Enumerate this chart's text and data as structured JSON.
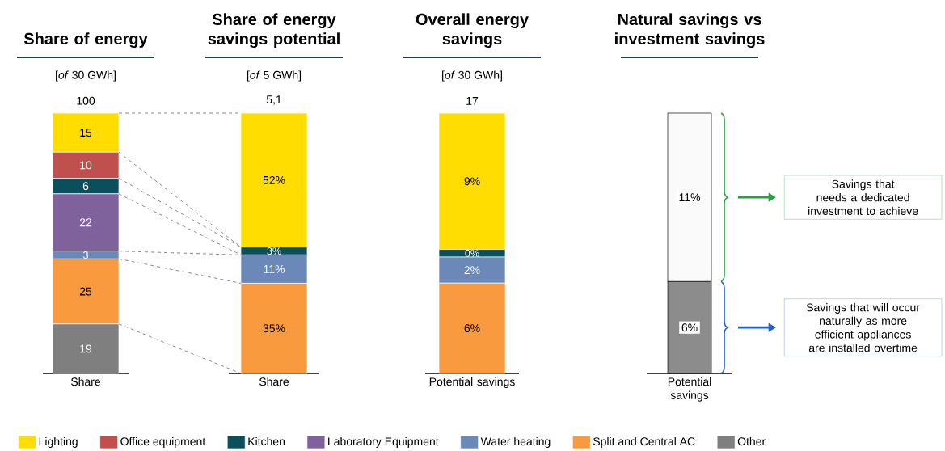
{
  "chart_data": [
    {
      "type": "bar",
      "stacked": true,
      "title": "Share of energy",
      "subtitle": "[*of* 30 GWh]",
      "categories": [
        "Share"
      ],
      "data_labels": true,
      "totals": [
        "100"
      ],
      "legend": "bottom",
      "series": [
        {
          "name": "Other",
          "color": "#7f7f7f",
          "values": [
            19
          ]
        },
        {
          "name": "Split and Central AC",
          "color": "#f99a3e",
          "values": [
            25
          ]
        },
        {
          "name": "Water heating",
          "color": "#6a89b8",
          "values": [
            3
          ]
        },
        {
          "name": "Laboratory Equipment",
          "color": "#7f629c",
          "values": [
            22
          ]
        },
        {
          "name": "Kitchen",
          "color": "#0c4f5c",
          "values": [
            6
          ]
        },
        {
          "name": "Office equipment",
          "color": "#c0504d",
          "values": [
            10
          ]
        },
        {
          "name": "Lighting",
          "color": "#ffdd00",
          "values": [
            15
          ]
        }
      ]
    },
    {
      "type": "bar",
      "stacked": true,
      "title": "Share of energy savings potential",
      "subtitle": "[*of* 5 GWh]",
      "categories": [
        "Share"
      ],
      "annotations": [
        {
          "text": "5,1",
          "x": "Share",
          "y": 101
        }
      ],
      "series": [
        {
          "color": "#f99a3e",
          "values": [
            35
          ],
          "value_labels": [
            "35%"
          ]
        },
        {
          "color": "#6a89b8",
          "values": [
            11
          ],
          "value_labels": [
            "11%"
          ]
        },
        {
          "color": "#0c4f5c",
          "values": [
            3
          ],
          "value_labels": [
            "3%"
          ]
        },
        {
          "color": "#ffdd00",
          "values": [
            52
          ],
          "value_labels": [
            "52%"
          ]
        }
      ]
    },
    {
      "type": "bar",
      "stacked": true,
      "title": "Overall energy savings",
      "subtitle": "[*of* 30 GWh]",
      "categories": [
        "Potential savings"
      ],
      "totals": [
        "17"
      ],
      "series": [
        {
          "color": "#f99a3e",
          "values": [
            5.9
          ],
          "value_labels": [
            "6%"
          ]
        },
        {
          "color": "#6a89b8",
          "values": [
            1.7
          ],
          "value_labels": [
            "2%"
          ]
        },
        {
          "color": "#0c4f5c",
          "values": [
            0.5
          ],
          "value_labels": [
            "0%"
          ]
        },
        {
          "color": "#ffdd00",
          "values": [
            8.9
          ],
          "value_labels": [
            "9%"
          ]
        }
      ]
    },
    {
      "type": "bar",
      "stacked": true,
      "title": "Natural savings vs investment savings",
      "categories": [
        "Potential savings"
      ],
      "series": [
        {
          "color": "#8c8c8c",
          "values": [
            6
          ],
          "value_labels": [
            "6%"
          ]
        },
        {
          "color": "#fafafa",
          "values": [
            11
          ],
          "value_labels": [
            "11%"
          ]
        }
      ],
      "annotations": [
        "Savings that needs a dedicated investment to achieve",
        "Savings that will occur naturally as more efficient appliances are installed overtime"
      ]
    }
  ]
}
